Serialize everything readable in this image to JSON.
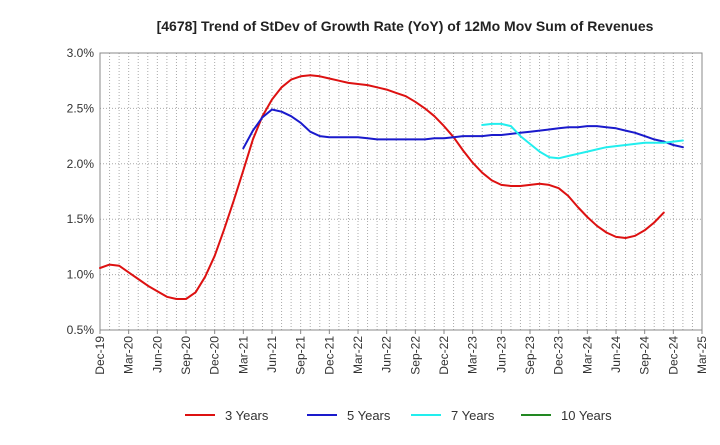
{
  "chart_data": {
    "type": "line",
    "title": "[4678]  Trend of StDev of Growth Rate (YoY) of 12Mo Mov Sum of Revenues",
    "xlabel": "",
    "ylabel": "",
    "ylim": [
      0.5,
      3.0
    ],
    "yticks": [
      "0.5%",
      "1.0%",
      "1.5%",
      "2.0%",
      "2.5%",
      "3.0%"
    ],
    "ytick_values": [
      0.5,
      1.0,
      1.5,
      2.0,
      2.5,
      3.0
    ],
    "xticks": [
      "Dec-19",
      "Mar-20",
      "Jun-20",
      "Sep-20",
      "Dec-20",
      "Mar-21",
      "Jun-21",
      "Sep-21",
      "Dec-21",
      "Mar-22",
      "Jun-22",
      "Sep-22",
      "Dec-22",
      "Mar-23",
      "Jun-23",
      "Sep-23",
      "Dec-23",
      "Mar-24",
      "Jun-24",
      "Sep-24",
      "Dec-24",
      "Mar-25"
    ],
    "x_months": 63,
    "grid": true,
    "legend_position": "bottom",
    "series": [
      {
        "name": "3 Years",
        "color": "#dd1111",
        "start_month": 0,
        "values": [
          1.06,
          1.09,
          1.08,
          1.02,
          0.96,
          0.9,
          0.85,
          0.8,
          0.78,
          0.78,
          0.84,
          0.98,
          1.17,
          1.41,
          1.67,
          1.94,
          2.22,
          2.43,
          2.58,
          2.69,
          2.76,
          2.79,
          2.8,
          2.79,
          2.77,
          2.75,
          2.73,
          2.72,
          2.71,
          2.69,
          2.67,
          2.64,
          2.61,
          2.56,
          2.5,
          2.43,
          2.34,
          2.24,
          2.12,
          2.01,
          1.92,
          1.85,
          1.81,
          1.8,
          1.8,
          1.81,
          1.82,
          1.81,
          1.78,
          1.71,
          1.61,
          1.52,
          1.44,
          1.38,
          1.34,
          1.33,
          1.35,
          1.4,
          1.47,
          1.56
        ]
      },
      {
        "name": "5 Years",
        "color": "#1a1acc",
        "start_month": 15,
        "values": [
          2.14,
          2.3,
          2.42,
          2.49,
          2.47,
          2.43,
          2.37,
          2.29,
          2.25,
          2.24,
          2.24,
          2.24,
          2.24,
          2.23,
          2.22,
          2.22,
          2.22,
          2.22,
          2.22,
          2.22,
          2.23,
          2.23,
          2.24,
          2.25,
          2.25,
          2.25,
          2.26,
          2.26,
          2.27,
          2.28,
          2.29,
          2.3,
          2.31,
          2.32,
          2.33,
          2.33,
          2.34,
          2.34,
          2.33,
          2.32,
          2.3,
          2.28,
          2.25,
          2.22,
          2.2,
          2.17,
          2.15
        ]
      },
      {
        "name": "7 Years",
        "color": "#22eeee",
        "start_month": 40,
        "values": [
          2.35,
          2.36,
          2.36,
          2.34,
          2.25,
          2.18,
          2.11,
          2.06,
          2.05,
          2.07,
          2.09,
          2.11,
          2.13,
          2.15,
          2.16,
          2.17,
          2.18,
          2.19,
          2.19,
          2.19,
          2.2,
          2.21
        ]
      },
      {
        "name": "10 Years",
        "color": "#228822",
        "start_month": 0,
        "values": []
      }
    ]
  }
}
